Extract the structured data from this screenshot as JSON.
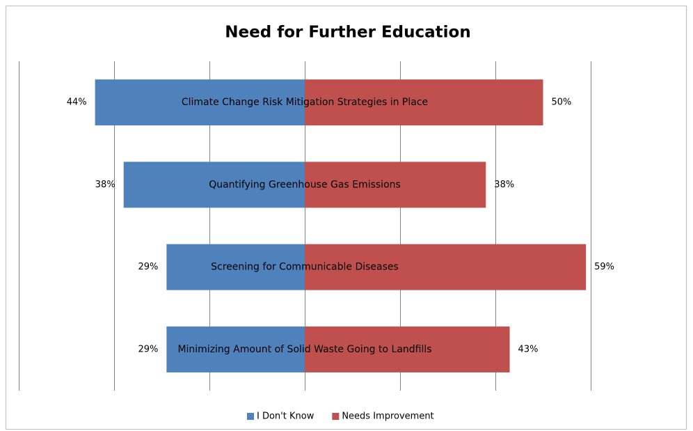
{
  "chart_data": {
    "type": "diverging_bar",
    "title": "Need for Further Education",
    "categories": [
      "Climate Change Risk Mitigation Strategies in Place",
      "Quantifying Greenhouse Gas Emissions",
      "Screening for Communicable Diseases",
      "Minimizing Amount of Solid Waste Going to Landfills"
    ],
    "series": [
      {
        "name": "I Don't Know",
        "color": "#4f81bd",
        "values": [
          44,
          38,
          29,
          29
        ],
        "value_labels": [
          "44%",
          "38%",
          "29%",
          "29%"
        ]
      },
      {
        "name": "Needs Improvement",
        "color": "#c0504d",
        "values": [
          50,
          38,
          59,
          43
        ],
        "value_labels": [
          "50%",
          "38%",
          "59%",
          "43%"
        ]
      }
    ],
    "xlim": [
      -60,
      60
    ],
    "xticks": [
      -60,
      -40,
      -20,
      0,
      20,
      40,
      60
    ],
    "grid": true,
    "legend": "bottom"
  }
}
